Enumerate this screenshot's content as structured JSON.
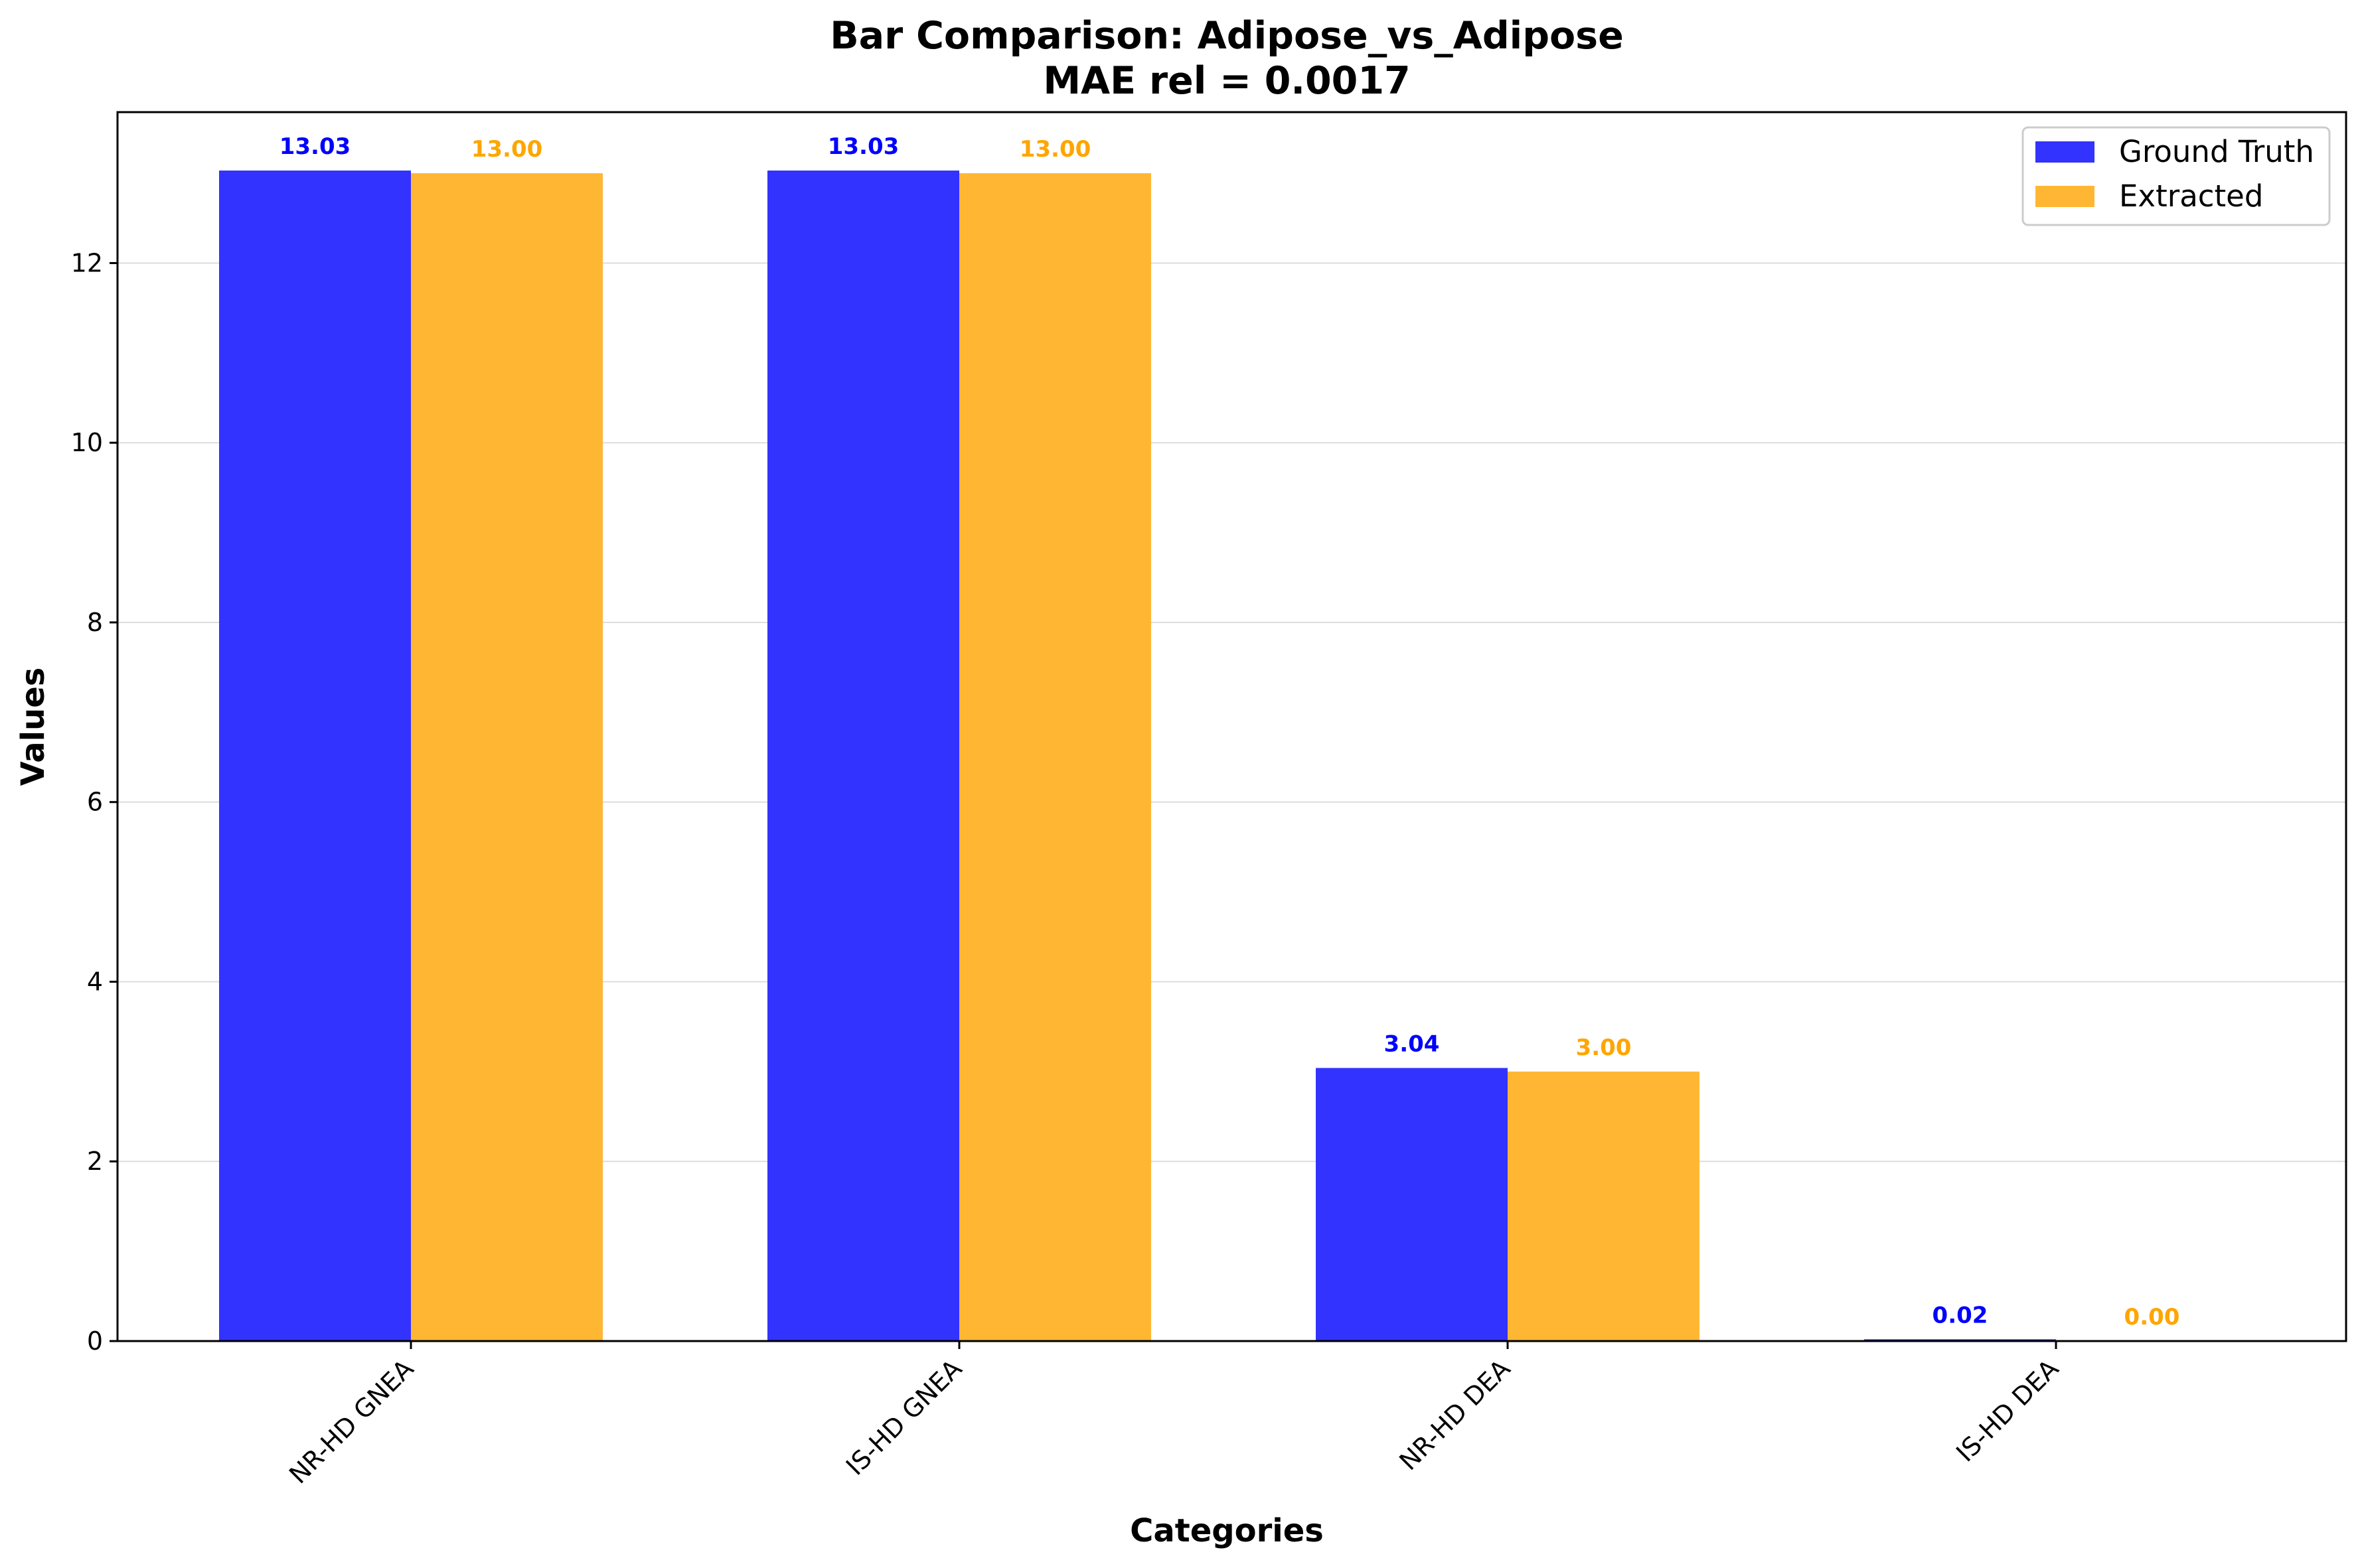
{
  "chart_data": {
    "type": "bar",
    "title": "Bar Comparison: Adipose_vs_Adipose",
    "subtitle": "MAE rel = 0.0017",
    "xlabel": "Categories",
    "ylabel": "Values",
    "categories": [
      "NR-HD GNEA",
      "IS-HD GNEA",
      "NR-HD DEA",
      "IS-HD DEA"
    ],
    "series": [
      {
        "name": "Ground Truth",
        "values": [
          13.03,
          13.03,
          3.04,
          0.02
        ],
        "labels": [
          "13.03",
          "13.03",
          "3.04",
          "0.02"
        ],
        "color": "#3333ff",
        "label_color": "#0000ff"
      },
      {
        "name": "Extracted",
        "values": [
          13.0,
          13.0,
          3.0,
          0.0
        ],
        "labels": [
          "13.00",
          "13.00",
          "3.00",
          "0.00"
        ],
        "color": "#ffb733",
        "label_color": "#ffa500"
      }
    ],
    "ylim": [
      0,
      13.68
    ],
    "yticks": [
      0,
      2,
      4,
      6,
      8,
      10,
      12
    ],
    "ytick_labels": [
      "0",
      "2",
      "4",
      "6",
      "8",
      "10",
      "12"
    ],
    "grid": "horizontal",
    "legend": "top-right"
  }
}
